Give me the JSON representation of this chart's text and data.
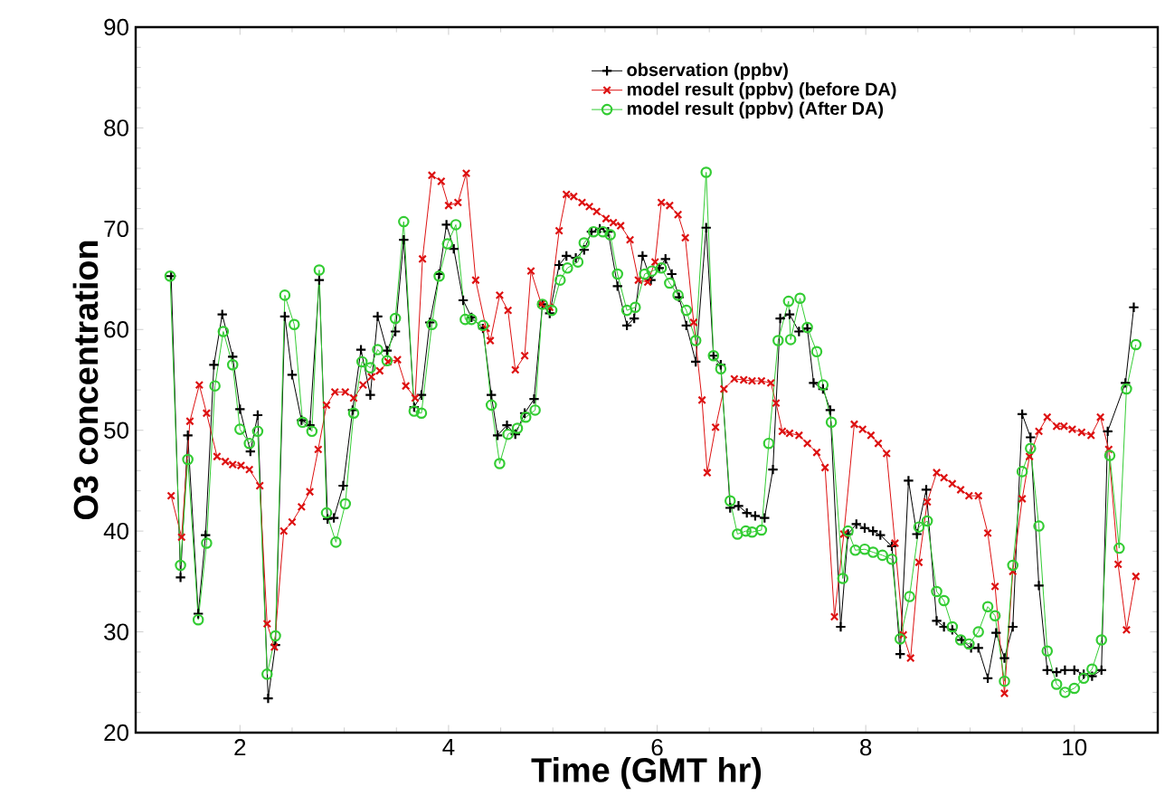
{
  "chart_data": {
    "type": "line",
    "xlabel": "Time (GMT hr)",
    "ylabel": "O3 concentration",
    "xlim": [
      1,
      10.8
    ],
    "ylim": [
      20,
      90
    ],
    "xticks": [
      2,
      4,
      6,
      8,
      10
    ],
    "yticks": [
      20,
      30,
      40,
      50,
      60,
      70,
      80,
      90
    ],
    "legend": "top right",
    "series": [
      {
        "name": "observation (ppbv)",
        "color": "#000000",
        "marker": "plus",
        "x": [
          1.34,
          1.43,
          1.5,
          1.6,
          1.67,
          1.75,
          1.83,
          1.93,
          2.0,
          2.1,
          2.17,
          2.27,
          2.34,
          2.43,
          2.5,
          2.59,
          2.67,
          2.76,
          2.84,
          2.9,
          2.99,
          3.08,
          3.16,
          3.25,
          3.32,
          3.41,
          3.49,
          3.57,
          3.67,
          3.74,
          3.82,
          3.91,
          3.98,
          4.05,
          4.14,
          4.22,
          4.33,
          4.41,
          4.47,
          4.56,
          4.64,
          4.73,
          4.82,
          4.9,
          4.97,
          5.06,
          5.13,
          5.22,
          5.3,
          5.37,
          5.45,
          5.53,
          5.62,
          5.71,
          5.78,
          5.86,
          5.94,
          6.02,
          6.08,
          6.14,
          6.21,
          6.28,
          6.37,
          6.47,
          6.54,
          6.61,
          6.7,
          6.78,
          6.86,
          6.94,
          7.03,
          7.11,
          7.18,
          7.27,
          7.36,
          7.44,
          7.5,
          7.59,
          7.66,
          7.76,
          7.83,
          7.91,
          7.99,
          8.07,
          8.14,
          8.25,
          8.33,
          8.41,
          8.49,
          8.58,
          8.68,
          8.75,
          8.83,
          8.92,
          9.01,
          9.08,
          9.17,
          9.25,
          9.33,
          9.41,
          9.5,
          9.58,
          9.66,
          9.74,
          9.83,
          9.91,
          10.0,
          10.09,
          10.17,
          10.26,
          10.32,
          10.49,
          10.57
        ],
        "values": [
          65.3,
          35.4,
          49.5,
          31.8,
          39.6,
          56.5,
          61.5,
          57.3,
          52.1,
          47.9,
          51.5,
          23.4,
          28.7,
          61.3,
          55.5,
          51.0,
          50.5,
          64.9,
          41.2,
          41.3,
          44.5,
          52.0,
          58.0,
          53.5,
          61.3,
          57.9,
          59.8,
          68.9,
          52.3,
          53.5,
          60.7,
          65.5,
          70.4,
          68.0,
          62.9,
          61.2,
          60.1,
          53.5,
          49.5,
          50.5,
          49.6,
          51.7,
          53.1,
          62.5,
          61.6,
          66.4,
          67.3,
          67.1,
          67.9,
          69.7,
          70.0,
          69.7,
          64.3,
          60.4,
          61.1,
          67.3,
          64.9,
          66.1,
          67.0,
          65.5,
          63.2,
          60.4,
          56.8,
          70.1,
          57.4,
          56.5,
          42.3,
          42.5,
          41.8,
          41.5,
          41.3,
          46.1,
          61.1,
          61.5,
          59.8,
          60.1,
          54.7,
          54.1,
          52.0,
          30.5,
          39.7,
          40.7,
          40.3,
          40.0,
          39.6,
          38.5,
          27.8,
          45.0,
          39.7,
          44.1,
          31.1,
          30.5,
          30.2,
          29.2,
          28.4,
          28.4,
          25.4,
          29.9,
          27.4,
          30.5,
          51.6,
          49.3,
          34.6,
          26.2,
          26.0,
          26.2,
          26.2,
          25.8,
          25.6,
          26.2,
          49.9,
          54.7,
          62.2
        ]
      },
      {
        "name": "model result (ppbv) (before DA)",
        "color": "#dd1111",
        "marker": "cross",
        "x": [
          1.34,
          1.44,
          1.52,
          1.61,
          1.68,
          1.78,
          1.86,
          1.93,
          2.01,
          2.09,
          2.19,
          2.26,
          2.33,
          2.42,
          2.5,
          2.59,
          2.67,
          2.75,
          2.83,
          2.91,
          3.01,
          3.09,
          3.18,
          3.26,
          3.34,
          3.42,
          3.51,
          3.59,
          3.68,
          3.75,
          3.84,
          3.93,
          4.0,
          4.09,
          4.17,
          4.26,
          4.36,
          4.4,
          4.49,
          4.57,
          4.64,
          4.73,
          4.79,
          4.89,
          4.97,
          5.06,
          5.13,
          5.2,
          5.28,
          5.35,
          5.42,
          5.51,
          5.58,
          5.65,
          5.74,
          5.82,
          5.91,
          5.98,
          6.04,
          6.12,
          6.2,
          6.27,
          6.35,
          6.43,
          6.48,
          6.56,
          6.64,
          6.74,
          6.83,
          6.91,
          7.0,
          7.09,
          7.14,
          7.2,
          7.27,
          7.36,
          7.44,
          7.53,
          7.61,
          7.7,
          7.79,
          7.89,
          7.97,
          8.05,
          8.12,
          8.2,
          8.28,
          8.36,
          8.43,
          8.51,
          8.59,
          8.68,
          8.75,
          8.83,
          8.91,
          8.99,
          9.08,
          9.17,
          9.24,
          9.33,
          9.41,
          9.5,
          9.57,
          9.66,
          9.74,
          9.83,
          9.9,
          9.98,
          10.07,
          10.16,
          10.25,
          10.33,
          10.42,
          10.5,
          10.59
        ],
        "values": [
          43.5,
          39.4,
          50.9,
          54.5,
          51.7,
          47.4,
          46.9,
          46.6,
          46.5,
          46.1,
          44.5,
          30.8,
          28.5,
          40.0,
          40.9,
          42.4,
          43.9,
          48.1,
          52.5,
          53.8,
          53.8,
          53.2,
          54.5,
          55.3,
          55.9,
          56.8,
          57.0,
          54.4,
          53.2,
          67.0,
          75.3,
          74.7,
          72.3,
          72.6,
          75.5,
          64.9,
          60.1,
          58.9,
          63.4,
          61.9,
          56.0,
          57.4,
          65.8,
          62.5,
          62.2,
          69.8,
          73.4,
          73.2,
          72.6,
          72.2,
          71.7,
          71.0,
          70.6,
          70.3,
          68.9,
          64.9,
          64.7,
          66.7,
          72.6,
          72.3,
          71.4,
          69.1,
          60.7,
          53.0,
          45.8,
          50.3,
          54.1,
          55.1,
          55.0,
          54.9,
          54.9,
          54.7,
          52.7,
          49.9,
          49.7,
          49.5,
          48.7,
          47.8,
          46.3,
          31.5,
          39.7,
          50.6,
          50.1,
          49.5,
          48.7,
          47.7,
          38.8,
          29.7,
          27.4,
          36.9,
          42.9,
          45.8,
          45.3,
          44.7,
          44.1,
          43.5,
          43.5,
          39.8,
          34.5,
          23.9,
          36.0,
          43.2,
          47.4,
          49.9,
          51.3,
          50.4,
          50.4,
          50.1,
          49.8,
          49.5,
          51.3,
          48.1,
          36.7,
          30.2,
          35.5
        ]
      },
      {
        "name": "model result (ppbv) (After DA)",
        "color": "#33cc33",
        "marker": "circle",
        "x": [
          1.33,
          1.43,
          1.5,
          1.6,
          1.68,
          1.76,
          1.84,
          1.93,
          2.0,
          2.09,
          2.17,
          2.26,
          2.34,
          2.43,
          2.52,
          2.6,
          2.69,
          2.76,
          2.83,
          2.92,
          3.01,
          3.09,
          3.17,
          3.25,
          3.32,
          3.41,
          3.49,
          3.57,
          3.67,
          3.74,
          3.84,
          3.91,
          3.99,
          4.07,
          4.16,
          4.22,
          4.33,
          4.41,
          4.49,
          4.57,
          4.66,
          4.74,
          4.83,
          4.9,
          4.99,
          5.07,
          5.14,
          5.24,
          5.3,
          5.39,
          5.48,
          5.55,
          5.62,
          5.71,
          5.79,
          5.88,
          5.95,
          6.04,
          6.12,
          6.2,
          6.28,
          6.37,
          6.47,
          6.54,
          6.61,
          6.7,
          6.77,
          6.85,
          6.91,
          7.0,
          7.07,
          7.16,
          7.26,
          7.28,
          7.37,
          7.44,
          7.53,
          7.59,
          7.67,
          7.78,
          7.83,
          7.9,
          7.99,
          8.07,
          8.16,
          8.25,
          8.33,
          8.42,
          8.51,
          8.59,
          8.68,
          8.75,
          8.83,
          8.91,
          8.99,
          9.08,
          9.17,
          9.24,
          9.33,
          9.41,
          9.5,
          9.58,
          9.66,
          9.74,
          9.83,
          9.91,
          10.0,
          10.09,
          10.17,
          10.26,
          10.34,
          10.43,
          10.5,
          10.59
        ],
        "values": [
          65.3,
          36.6,
          47.1,
          31.2,
          38.8,
          54.4,
          59.8,
          56.5,
          50.1,
          48.7,
          49.9,
          25.8,
          29.6,
          63.4,
          60.5,
          50.8,
          49.9,
          65.9,
          41.8,
          38.9,
          42.7,
          51.7,
          56.8,
          56.2,
          58.0,
          56.9,
          61.1,
          70.7,
          51.9,
          51.7,
          60.5,
          65.3,
          68.5,
          70.4,
          61.0,
          61.0,
          60.4,
          52.5,
          46.7,
          49.6,
          50.2,
          51.3,
          52.0,
          62.5,
          61.9,
          64.9,
          66.1,
          66.7,
          68.6,
          69.7,
          69.7,
          69.4,
          65.5,
          61.9,
          62.2,
          65.5,
          65.8,
          66.1,
          64.6,
          63.4,
          61.9,
          58.9,
          75.6,
          57.4,
          56.1,
          43.0,
          39.7,
          40.0,
          39.9,
          40.1,
          48.7,
          58.9,
          62.8,
          59.0,
          63.1,
          60.2,
          57.8,
          54.5,
          50.8,
          35.3,
          40.0,
          38.1,
          38.2,
          37.9,
          37.6,
          37.2,
          29.3,
          33.5,
          40.4,
          41.0,
          34.0,
          33.1,
          30.5,
          29.2,
          28.8,
          30.0,
          32.5,
          31.6,
          25.1,
          36.6,
          45.9,
          48.2,
          40.5,
          28.1,
          24.8,
          24.0,
          24.4,
          25.4,
          26.3,
          29.2,
          47.5,
          38.3,
          54.1,
          58.5
        ]
      }
    ]
  }
}
